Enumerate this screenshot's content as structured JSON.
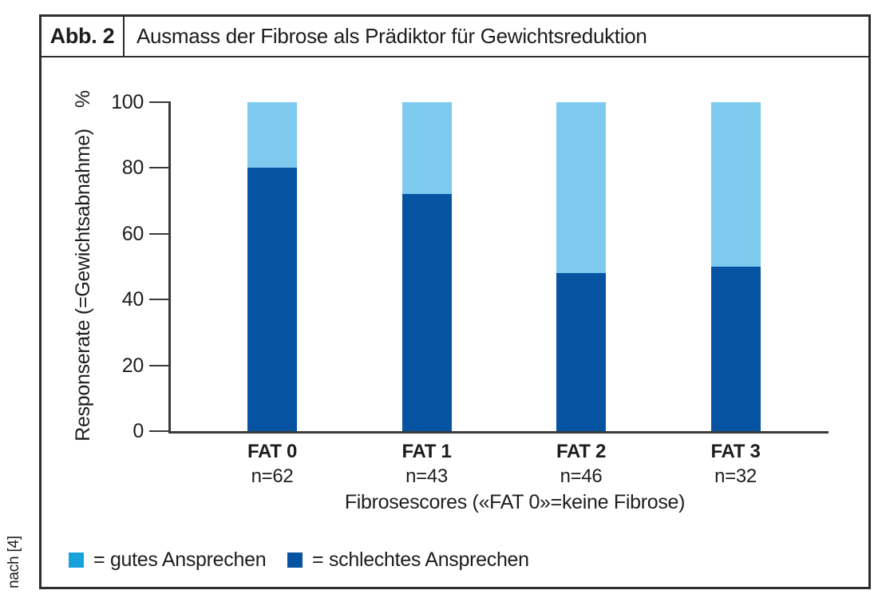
{
  "header": {
    "label": "Abb. 2",
    "title": "Ausmass der Fibrose als Prädiktor für Gewichtsreduktion"
  },
  "source_note": "nach [4]",
  "colors": {
    "dark_blue": "#0553a1",
    "light_blue": "#7ec9ee",
    "legend_cyan": "#17a2db",
    "axis": "#3a3a39",
    "ink": "#1d1d1b"
  },
  "chart_data": {
    "type": "bar",
    "stacked": true,
    "categories": [
      "FAT 0",
      "FAT 1",
      "FAT 2",
      "FAT 3"
    ],
    "category_sublabels": [
      "n=62",
      "n=43",
      "n=46",
      "n=32"
    ],
    "series": [
      {
        "name": "schlechtes Ansprechen",
        "color": "#0553a1",
        "values": [
          80,
          72,
          48,
          50
        ]
      },
      {
        "name": "gutes Ansprechen",
        "color": "#7ec9ee",
        "values": [
          20,
          28,
          52,
          50
        ]
      }
    ],
    "title": "Ausmass der Fibrose als Prädiktor für Gewichtsreduktion",
    "xlabel": "Fibrosescores («FAT 0»=keine Fibrose)",
    "ylabel": "Responserate (=Gewichtsabnahme)",
    "ylabel_unit": "%",
    "ylim": [
      0,
      100
    ],
    "yticks": [
      0,
      20,
      40,
      60,
      80,
      100
    ],
    "grid": false,
    "legend_position": "bottom",
    "legend": [
      {
        "label": "= gutes Ansprechen",
        "color": "#17a2db"
      },
      {
        "label": "= schlechtes Ansprechen",
        "color": "#0553a1"
      }
    ]
  }
}
